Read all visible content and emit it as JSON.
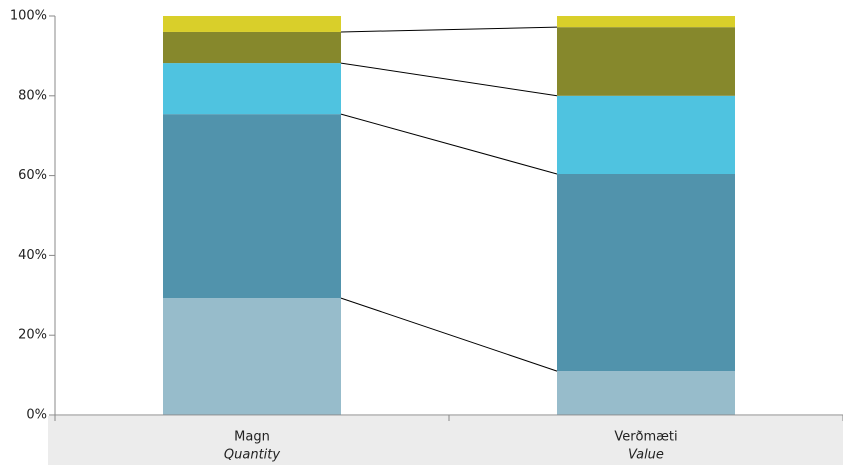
{
  "chart_data": {
    "type": "stacked_bar",
    "categories": [
      "Magn",
      "Verðmæti"
    ],
    "category_subtitles": [
      "Quantity",
      "Value"
    ],
    "series": [
      {
        "color": "#97bccb",
        "values": [
          29.3,
          11.0
        ]
      },
      {
        "color": "#5193ac",
        "values": [
          46.1,
          49.4
        ]
      },
      {
        "color": "#4fc3e0",
        "values": [
          12.8,
          19.6
        ]
      },
      {
        "color": "#86882c",
        "values": [
          7.8,
          17.2
        ]
      },
      {
        "color": "#d9cf2a",
        "values": [
          4.0,
          2.8
        ]
      }
    ],
    "ylim": [
      0,
      100
    ],
    "yticks": [
      {
        "value": 0,
        "label": "0%"
      },
      {
        "value": 20,
        "label": "20%"
      },
      {
        "value": 40,
        "label": "40%"
      },
      {
        "value": 60,
        "label": "60%"
      },
      {
        "value": 80,
        "label": "80%"
      },
      {
        "value": 100,
        "label": "100%"
      }
    ],
    "connectors": true
  }
}
